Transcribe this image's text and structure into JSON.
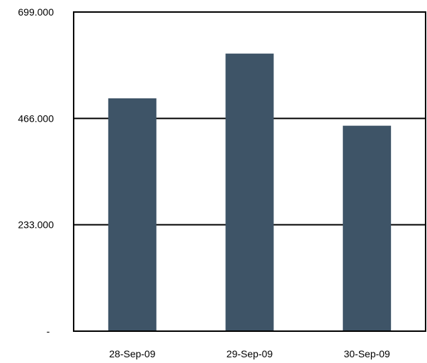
{
  "chart_data": {
    "type": "bar",
    "categories": [
      "28-Sep-09",
      "29-Sep-09",
      "30-Sep-09"
    ],
    "series": [
      {
        "values": [
          510,
          608,
          450
        ]
      }
    ],
    "y_tick_labels": [
      "-",
      "233.000",
      "466.000",
      "699.000"
    ],
    "y_ticks": [
      0,
      233,
      466,
      699
    ],
    "ylim": [
      0,
      699
    ],
    "grid": true,
    "title": "",
    "xlabel": "",
    "ylabel": "",
    "bar_color": "#3e5467",
    "grid_color": "#000000"
  }
}
